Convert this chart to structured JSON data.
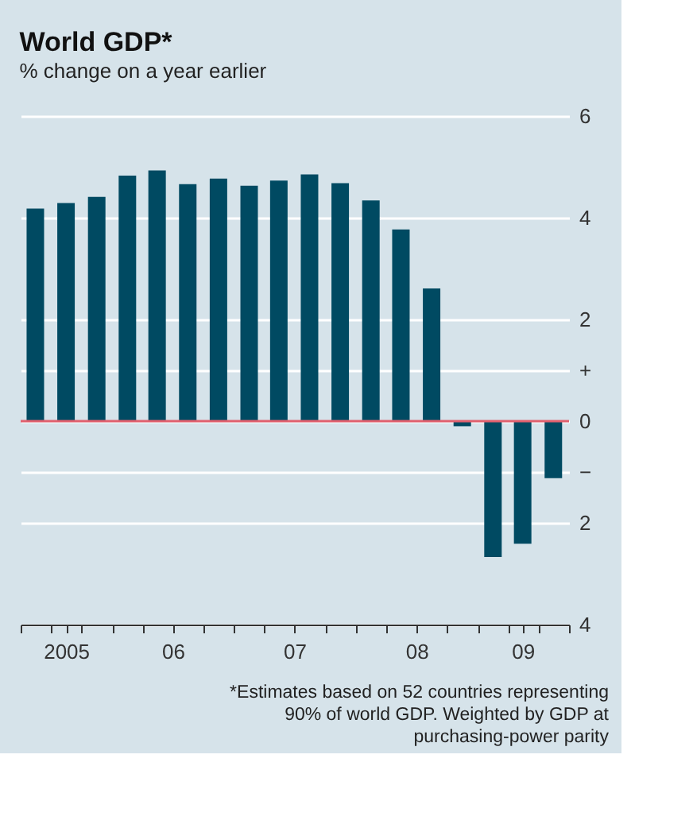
{
  "chart_data": {
    "type": "bar",
    "title": "World GDP*",
    "subtitle": "% change on a year earlier",
    "x": [
      "2005-05-15",
      "2005-08-15",
      "2005-11-15",
      "2006-02-15",
      "2006-05-15",
      "2006-08-15",
      "2006-11-15",
      "2007-02-15",
      "2007-05-15",
      "2007-08-15",
      "2007-11-15",
      "2008-02-15",
      "2008-05-15",
      "2008-08-15",
      "2008-11-15",
      "2009-02-15",
      "2009-05-15",
      "2009-08-15"
    ],
    "values": [
      4.18,
      4.29,
      4.41,
      4.83,
      4.93,
      4.66,
      4.77,
      4.63,
      4.73,
      4.85,
      4.68,
      4.34,
      3.77,
      2.61,
      -0.1,
      -2.67,
      -2.41,
      -1.12
    ],
    "color": "#004a62",
    "xlim": [
      "2005-04-01",
      "2009-10-01"
    ],
    "xticks": [
      {
        "value": "2005-04-01",
        "label": null
      },
      {
        "value": "2005-07-01",
        "label": null
      },
      {
        "value": "2005-08-15",
        "label": "2005"
      },
      {
        "value": "2005-10-01",
        "label": null
      },
      {
        "value": "2006-01-01",
        "label": null
      },
      {
        "value": "2006-04-01",
        "label": null
      },
      {
        "value": "2006-07-01",
        "label": "06"
      },
      {
        "value": "2006-10-01",
        "label": null
      },
      {
        "value": "2007-01-01",
        "label": null
      },
      {
        "value": "2007-04-01",
        "label": null
      },
      {
        "value": "2007-07-01",
        "label": "07"
      },
      {
        "value": "2007-10-01",
        "label": null
      },
      {
        "value": "2008-01-01",
        "label": null
      },
      {
        "value": "2008-04-01",
        "label": null
      },
      {
        "value": "2008-07-01",
        "label": "08"
      },
      {
        "value": "2008-10-01",
        "label": null
      },
      {
        "value": "2009-01-01",
        "label": null
      },
      {
        "value": "2009-04-01",
        "label": null
      },
      {
        "value": "2009-05-15",
        "label": "09"
      },
      {
        "value": "2009-07-01",
        "label": null
      },
      {
        "value": "2009-10-01",
        "label": null
      }
    ],
    "ylim": [
      -4,
      6
    ],
    "yticks": [
      6,
      4,
      2,
      {
        "value": 1,
        "label": "+"
      },
      0,
      {
        "value": -1,
        "label": "−"
      },
      {
        "value": -2,
        "label": "2"
      },
      {
        "value": -4,
        "label": "4"
      }
    ],
    "grid": "y",
    "ref_lines": [
      {
        "axis": "y",
        "value": 0,
        "color": "#e0606e"
      }
    ],
    "annotations": [
      "*Estimates based on 52 countries representing 90% of world GDP. Weighted by GDP at purchasing-power parity"
    ]
  }
}
